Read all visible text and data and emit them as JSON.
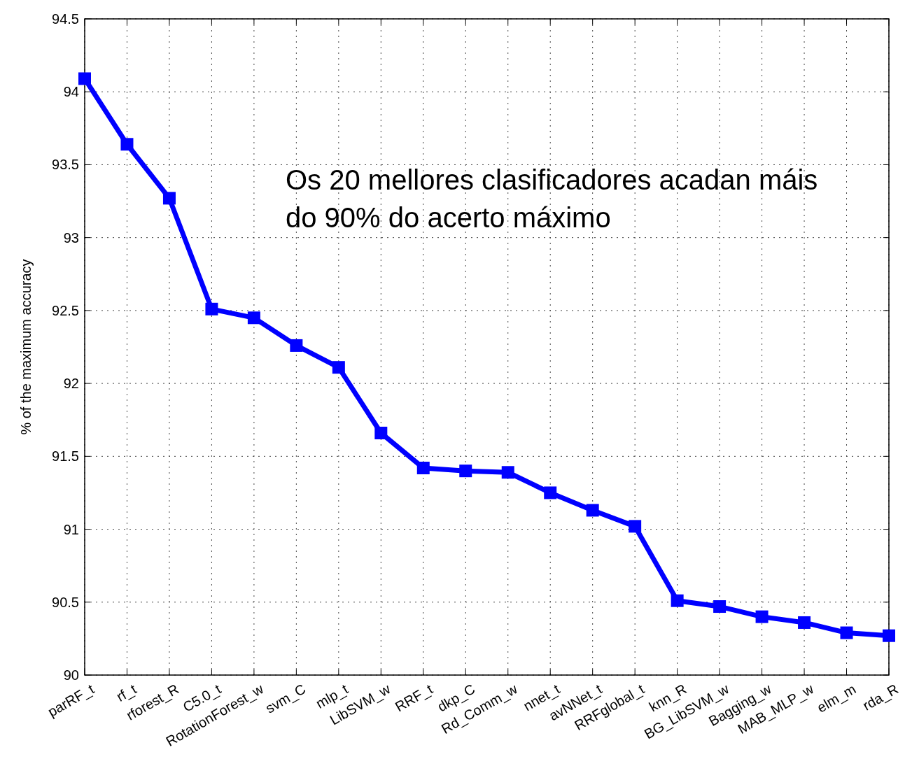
{
  "chart_data": {
    "type": "line",
    "ylabel": "% of the maximum accuracy",
    "categories": [
      "parRF_t",
      "rf_t",
      "rforest_R",
      "C5.0_t",
      "RotationForest_w",
      "svm_C",
      "mlp_t",
      "LibSVM_w",
      "RRF_t",
      "dkp_C",
      "Rd_Comm_w",
      "nnet_t",
      "avNNet_t",
      "RRFglobal_t",
      "knn_R",
      "BG_LibSVM_w",
      "Bagging_w",
      "MAB_MLP_w",
      "elm_m",
      "rda_R"
    ],
    "series": [
      {
        "color": "#0000ff",
        "values": [
          94.09,
          93.64,
          93.27,
          92.51,
          92.45,
          92.26,
          92.11,
          91.66,
          91.42,
          91.4,
          91.39,
          91.25,
          91.13,
          91.02,
          90.51,
          90.47,
          90.4,
          90.36,
          90.29,
          90.27
        ]
      }
    ],
    "ylim": [
      90,
      94.5
    ],
    "yticks": [
      90,
      90.5,
      91,
      91.5,
      92,
      92.5,
      93,
      93.5,
      94,
      94.5
    ],
    "grid": true,
    "marker": "square",
    "line_style": "solid",
    "annotations": [
      "Os 20 mellores clasificadores acadan máis do 90% do acerto máximo"
    ]
  }
}
